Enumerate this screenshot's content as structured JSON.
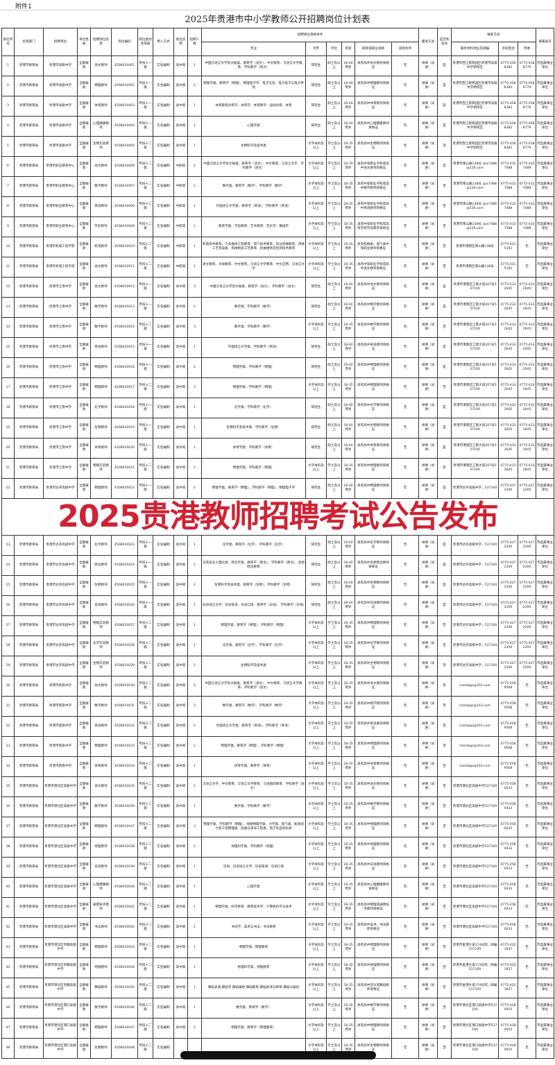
{
  "attachment": "附件1",
  "title": "2025年贵港市中小学教师公开招聘岗位计划表",
  "watermark": "2025贵港教师招聘考试公告发布",
  "colors": {
    "watermark": "#cf2233",
    "border": "#333333"
  },
  "headers": {
    "no": "岗位序号",
    "dept": "主管部门",
    "unit": "招聘单位",
    "nature": "单位性质",
    "post": "招聘岗位名称",
    "code": "岗位编码",
    "grade": "岗位类别及等级",
    "method": "用人方式",
    "type": "岗位说明",
    "count": "招聘人数",
    "qual_group": "招聘岗位资格条件",
    "major": "专业",
    "edu": "学历",
    "degree": "学位",
    "age": "年龄",
    "cert": "职称或职业资格",
    "other": "其他条件",
    "interview": "面试方式",
    "exempt": "是否免笔试",
    "contact_group": "联系方式",
    "addr": "报考材料地址及邮编",
    "tel": "咨询电话",
    "fax": "传真",
    "level": "隶属层次"
  },
  "rows": [
    [
      "1",
      "贵港市教育局",
      "贵港市高级中学",
      "全额拨款",
      "语文教师",
      "4508010001",
      "专技十一级",
      "实名编制",
      "高中岗",
      "1",
      "中国汉语言文学及文秘类、教育学（语文）、中文教育、汉语言文学教育、学科教学（语文）",
      "研究生",
      "硕士及以上",
      "18-40周岁",
      "具有高中语文教师资格证",
      "无",
      "讲课（试讲）",
      "是",
      "贵港市西江教育园区贵港市高级中学新校区",
      "0775-4588382",
      "0775-4588779",
      "市直属事业单位"
    ],
    [
      "2",
      "贵港市教育局",
      "贵港市高级中学",
      "全额拨款",
      "物理教师",
      "4508010002",
      "专技十一级",
      "实名编制",
      "高中岗",
      "2",
      "物理学类、教育学（物理）、物理电子学、电子信息、电力电子与电力传动",
      "研究生",
      "硕士及以上",
      "18-40周岁",
      "具有高中物理教师资格证",
      "无",
      "讲课（试讲）",
      "是",
      "贵港市西江教育园区贵港市高级中学新校区",
      "0775-4588382",
      "0775-4588779",
      "市直属事业单位"
    ],
    [
      "3",
      "贵港市教育局",
      "贵港市高级中学",
      "全额拨款",
      "体育教师",
      "4508010003",
      "专技十一级",
      "实名编制",
      "高中岗",
      "1",
      "体育教育训练学、体育学、体育教学、运动训练、体育",
      "研究生",
      "硕士及以上",
      "18-40周岁",
      "具有高中体育教师资格证",
      "无",
      "讲课（试讲）",
      "是",
      "贵港市西江教育园区贵港市高级中学新校区",
      "0775-4588382",
      "0775-4588779",
      "市直属事业单位"
    ],
    [
      "4",
      "贵港市教育局",
      "贵港市高级中学",
      "全额拨款",
      "心理健康教师",
      "4508010004",
      "专技十一级",
      "实名编制",
      "高中岗",
      "1",
      "心理学类",
      "研究生",
      "硕士及以上",
      "18-40周岁",
      "具有高中心理健康教师资格证",
      "无",
      "讲课（试讲）",
      "是",
      "贵港市西江教育园区贵港市高级中学新校区",
      "0775-4588382",
      "0775-4588779",
      "市直属事业单位"
    ],
    [
      "5",
      "贵港市教育局",
      "贵港市高级中学",
      "全额拨款",
      "生物实验教师",
      "4508010005",
      "专技十二级",
      "实名编制",
      "高中岗",
      "1",
      "生物科学及技术类",
      "大学本科及以上",
      "学士及以上",
      "18-35周岁",
      "具有高中生物教师资格证",
      "无",
      "讲课（试讲）",
      "否",
      "贵港市西江教育园区贵港市高级中学新校区",
      "0775-4588382",
      "0775-4588779",
      "市直属事业单位"
    ],
    [
      "6",
      "贵港市教育局",
      "贵港市职业教育中心",
      "全额拨款",
      "语文教师",
      "4508010006",
      "专技十二级",
      "实名编制",
      "中职岗",
      "2",
      "中国汉语言文学及文秘类、教育学（语文）、中文教育、汉语言文学、学科教学（语文）",
      "大学本科及以上",
      "学士及以上",
      "18-35周岁",
      "具有中等职业学校或高中语文教师资格证",
      "无",
      "讲课（试讲）",
      "否",
      "贵港市南山路138号 zjzx7488@126.com",
      "0775-4327488",
      "0775-4327488",
      "市直属事业单位"
    ],
    [
      "7",
      "贵港市教育局",
      "贵港市职业教育中心",
      "全额拨款",
      "数学教师",
      "4508010007",
      "专技十二级",
      "实名编制",
      "中职岗",
      "2",
      "数学类、教育学（数学）、学科教学（数学）",
      "大学本科及以上",
      "学士及以上",
      "18-35周岁",
      "具有中等职业学校或高中数学教师资格证",
      "无",
      "讲课（试讲）",
      "否",
      "贵港市南山路138号 zjzx7488@126.com",
      "0775-4327488",
      "0775-4327488",
      "市直属事业单位"
    ],
    [
      "8",
      "贵港市教育局",
      "贵港市职业教育中心",
      "全额拨款",
      "英语教师",
      "4508010008",
      "专技十二级",
      "实名编制",
      "中职岗",
      "1",
      "外国语言文学类、教育学（英语）、学科教学（英语）",
      "大学本科及以上",
      "学士及以上",
      "18-35周岁",
      "具有中等职业学校或高中英语教师资格证",
      "无",
      "讲课（试讲）",
      "否",
      "贵港市南山路138号 zjzx7488@126.com",
      "0775-4327488",
      "0775-4327488",
      "市直属事业单位"
    ],
    [
      "9",
      "贵港市教育局",
      "贵港市职业教育中心",
      "全额拨款",
      "学前教师",
      "4508010009",
      "专技十二级",
      "实名编制",
      "中职岗",
      "1",
      "教育学类、学前教育、艺术教育、音乐学、舞蹈学",
      "大学本科及以上",
      "学士及以上",
      "18-35周岁",
      "具有中等职业学校或高等学校学前教师资格证",
      "无",
      "讲课（试讲）",
      "否",
      "贵港市南山路138号 zjzx7488@126.com",
      "0775-4327488",
      "0775-4327488",
      "市直属事业单位"
    ],
    [
      "10",
      "贵港市教育局",
      "贵港市机电工程学校",
      "全额拨款",
      "机电教师",
      "4508010010",
      "专技十二级",
      "实名编制",
      "中职岗",
      "1",
      "机电技术教育、汽车维修工程教育、电气技术教育、农业机械教育、焊接工艺及设备、机械制造工艺教育、机械维修及检测技术教育",
      "大学本科及以上",
      "学士及以上",
      "18-35周岁",
      "具有机械类、电气类中等职业教师资格证",
      "无",
      "讲课（试讲）",
      "否",
      "贵港市港南区南山路138号",
      "0775-4215192",
      "无",
      "市直属事业单位"
    ],
    [
      "11",
      "贵港市教育局",
      "贵港市机电工程学校",
      "全额拨款",
      "语文教师",
      "4508010011",
      "专技十二级",
      "实名编制",
      "中职岗",
      "1",
      "语文教育、文秘教育、中文教育、汉语言文学教育、中文应用、汉语言文学",
      "大学本科及以上",
      "学士及以上",
      "18-35周岁",
      "具有中等职业学校或高中语文教师资格证",
      "无",
      "讲课（试讲）",
      "否",
      "贵港市港南区南山路138号",
      "0775-4215192",
      "无",
      "市直属事业单位"
    ],
    [
      "12",
      "贵港市教育局",
      "贵港市江南中学",
      "全额拨款",
      "语文教师",
      "4508010012",
      "专技十一级",
      "实名编制",
      "高中岗",
      "3",
      "中国汉语言文学及文秘类、教育学（语文）、学科教学（语文）",
      "研究生",
      "硕士及以上",
      "18-40周岁",
      "具有高中语文教师资格证",
      "无",
      "讲课（试讲）",
      "是",
      "贵港市港南区江南大道207号537100",
      "0775-4332645",
      "0775-4332645",
      "市直属事业单位"
    ],
    [
      "13",
      "贵港市教育局",
      "贵港市江南中学",
      "全额拨款",
      "数学教师",
      "4508010013",
      "专技十一级",
      "实名编制",
      "高中岗",
      "2",
      "数学类、学科教学（数学）",
      "研究生",
      "硕士及以上",
      "18-40周岁",
      "具有高中数学教师资格证",
      "无",
      "讲课（试讲）",
      "是",
      "贵港市港南区江南大道207号537100",
      "0775-4332645",
      "0775-4332645",
      "市直属事业单位"
    ],
    [
      "14",
      "贵港市教育局",
      "贵港市江南中学",
      "全额拨款",
      "数学教师",
      "4508010014",
      "专技十二级",
      "实名编制",
      "高中岗",
      "3",
      "数学类、学科教学（数学）",
      "大学本科及以上",
      "学士及以上",
      "18-35周岁",
      "具有高中数学教师资格证",
      "无",
      "讲课（试讲）",
      "否",
      "贵港市港南区江南大道207号537100",
      "0775-4332645",
      "0775-4332645",
      "市直属事业单位"
    ],
    [
      "15",
      "贵港市教育局",
      "贵港市江南中学",
      "全额拨款",
      "英语教师",
      "4508010015",
      "专技十一级",
      "实名编制",
      "高中岗",
      "1",
      "外国语言文学类、学科教学（英语）",
      "研究生",
      "硕士及以上",
      "18-40周岁",
      "具有高中英语教师资格证",
      "无",
      "讲课（试讲）",
      "是",
      "贵港市港南区江南大道207号537100",
      "0775-4332645",
      "0775-4332645",
      "市直属事业单位"
    ],
    [
      "16",
      "贵港市教育局",
      "贵港市江南中学",
      "全额拨款",
      "物理教师",
      "4508010016",
      "专技十一级",
      "实名编制",
      "高中岗",
      "2",
      "物理学类、学科教学（物理）",
      "研究生",
      "硕士及以上",
      "18-40周岁",
      "具有高中物理教师资格证",
      "无",
      "讲课（试讲）",
      "是",
      "贵港市港南区江南大道207号537100",
      "0775-4332645",
      "0775-4332645",
      "市直属事业单位"
    ],
    [
      "17",
      "贵港市教育局",
      "贵港市江南中学",
      "全额拨款",
      "物理教师",
      "4508010017",
      "专技十二级",
      "实名编制",
      "高中岗",
      "3",
      "物理学类、学科教学（物理）",
      "大学本科及以上",
      "学士及以上",
      "18-35周岁",
      "具有高中物理教师资格证",
      "无",
      "讲课（试讲）",
      "否",
      "贵港市港南区江南大道207号537100",
      "0775-4332645",
      "0775-4332645",
      "市直属事业单位"
    ],
    [
      "18",
      "贵港市教育局",
      "贵港市江南中学",
      "全额拨款",
      "化学教师",
      "4508010018",
      "专技十一级",
      "实名编制",
      "高中岗",
      "1",
      "化学类、学科教学（化学）",
      "研究生",
      "硕士及以上",
      "18-40周岁",
      "具有高中化学教师资格证",
      "无",
      "讲课（试讲）",
      "是",
      "贵港市港南区江南大道207号537100",
      "0775-4332645",
      "0775-4332645",
      "市直属事业单位"
    ],
    [
      "19",
      "贵港市教育局",
      "贵港市江南中学",
      "全额拨款",
      "生物教师",
      "4508010019",
      "专技十一级",
      "实名编制",
      "高中岗",
      "1",
      "生物科学及技术类、学科教学（生物）",
      "研究生",
      "硕士及以上",
      "18-40周岁",
      "具有高中生物教师资格证",
      "无",
      "讲课（试讲）",
      "是",
      "贵港市港南区江南大道207号537100",
      "0775-4332645",
      "0775-4332645",
      "市直属事业单位"
    ],
    [
      "20",
      "贵港市教育局",
      "贵港市江南中学",
      "全额拨款",
      "体育教师",
      "4508010020",
      "专技十一级",
      "实名编制",
      "高中岗",
      "1",
      "体育学类、学科教学（体育）",
      "研究生",
      "硕士及以上",
      "18-40周岁",
      "具有高中体育教师资格证",
      "无",
      "讲课（试讲）",
      "是",
      "贵港市港南区江南大道207号537100",
      "0775-4332645",
      "0775-4332645",
      "市直属事业单位"
    ],
    [
      "21",
      "贵港市教育局",
      "贵港市江南中学",
      "全额拨款",
      "物理实验教师",
      "4508010021",
      "专技十二级",
      "实名编制",
      "高中岗",
      "2",
      "物理学类、学科教学（物理）",
      "大学本科及以上",
      "学士及以上",
      "18-35周岁",
      "具有高中物理教师资格证",
      "无",
      "讲课（试讲）",
      "否",
      "贵港市港南区江南大道207号537100",
      "0775-4332645",
      "0775-4332645",
      "市直属事业单位"
    ],
    [
      "22",
      "贵港市教育局",
      "贵港市达开高级中学",
      "全额拨款",
      "物理教师",
      "4508010022",
      "专技十一级",
      "实名编制",
      "高中岗",
      "2",
      "物理学类、教育学（物理）、学科教学（物理）、物理电子学",
      "研究生",
      "硕士及以上",
      "18-40周岁",
      "具有高中物理教师资格证",
      "无",
      "讲课（试讲）",
      "是",
      "贵港市达开高级中学，537100",
      "0775-4272200",
      "0775-4272200",
      "市直属事业单位"
    ],
    [
      "23",
      "贵港市教育局",
      "贵港市达开高级中学",
      "全额拨款",
      "化学教师",
      "4508010023",
      "专技十一级",
      "实名编制",
      "高中岗",
      "1",
      "化学类、教育学（化学）、学科教学（化学）",
      "研究生",
      "硕士及以上",
      "18-40周岁",
      "具有高中化学教师资格证",
      "无",
      "讲课（试讲）",
      "是",
      "贵港市达开高级中学，537100",
      "0775-4272200",
      "0775-4272200",
      "市直属事业单位"
    ],
    [
      "24",
      "贵港市教育局",
      "贵港市达开高级中学",
      "全额拨款",
      "政治教师",
      "4508010024",
      "专技十一级",
      "实名编制",
      "高中岗",
      "2",
      "马克思主义理论类、政治学类、教育学（政治）、学科教学（政治）、思想政治教育",
      "研究生",
      "硕士及以上",
      "18-40周岁",
      "具有高中思想政治教师资格证",
      "无",
      "讲课（试讲）",
      "是",
      "贵港市达开高级中学，537100",
      "0775-4272200",
      "0775-4272200",
      "市直属事业单位"
    ],
    [
      "25",
      "贵港市教育局",
      "贵港市达开高级中学",
      "全额拨款",
      "生物教师",
      "4508010025",
      "专技十一级",
      "实名编制",
      "高中岗",
      "2",
      "生物科学及技术类、教育学（生物）、学科教学（生物）",
      "研究生",
      "硕士及以上",
      "18-40周岁",
      "具有高中生物教师资格证",
      "无",
      "讲课（试讲）",
      "是",
      "贵港市达开高级中学，537100",
      "0775-4272200",
      "0775-4272200",
      "市直属事业单位"
    ],
    [
      "26",
      "贵港市教育局",
      "贵港市达开高级中学",
      "全额拨款",
      "日语教师",
      "4508010026",
      "专技十一级",
      "实名编制",
      "高中岗",
      "1",
      "日语语言文学、日语笔译、日语口译、教育学（日语）、学科教学（日语）",
      "研究生",
      "硕士及以上",
      "18-40周岁",
      "具有高中日语教师资格证",
      "无",
      "讲课（试讲）",
      "是",
      "贵港市达开高级中学，537100",
      "0775-4272200",
      "0775-4272200",
      "市直属事业单位"
    ],
    [
      "27",
      "贵港市教育局",
      "贵港市达开高级中学",
      "全额拨款",
      "物理实验教师",
      "4508010027",
      "专技十二级",
      "实名编制",
      "高中岗",
      "1",
      "物理学类、教育学（物理）、学科教学（物理）",
      "大学本科及以上",
      "学士及以上",
      "18-35周岁",
      "具有高中物理教师资格证",
      "无",
      "讲课（试讲）",
      "否",
      "贵港市达开高级中学，537100",
      "0775-4272200",
      "0775-4272200",
      "市直属事业单位"
    ],
    [
      "28",
      "贵港市教育局",
      "贵港市达开高级中学",
      "全额拨款",
      "化学实验教师",
      "4508010028",
      "专技十二级",
      "实名编制",
      "高中岗",
      "1",
      "化学类、教育学（化学）、学科教学（化学）",
      "大学本科及以上",
      "学士及以上",
      "18-35周岁",
      "具有高中化学教师资格证",
      "无",
      "讲课（试讲）",
      "否",
      "贵港市达开高级中学，537100",
      "0775-4272200",
      "0775-4272200",
      "市直属事业单位"
    ],
    [
      "29",
      "贵港市教育局",
      "贵港市达开高级中学",
      "全额拨款",
      "生物实验教师",
      "4508010029",
      "专技十二级",
      "实名编制",
      "高中岗",
      "2",
      "生物科学及技术类",
      "大学本科及以上",
      "学士及以上",
      "18-35周岁",
      "具有高中生物教师资格证",
      "无",
      "讲课（试讲）",
      "否",
      "贵港市达开高级中学，537100",
      "0775-4272200",
      "0775-4272200",
      "市直属事业单位"
    ],
    [
      "30",
      "贵港市教育局",
      "贵港市民族中学",
      "全额拨款",
      "语文教师",
      "4508010030",
      "专技十二级",
      "实名编制",
      "高中岗",
      "4",
      "中国汉语言文学及文秘类、教育学（语文）、中文教育、汉语言文学教育、学科教学（语文）",
      "大学本科及以上",
      "学士及以上",
      "18-35周岁",
      "具有高中语文教师资格证",
      "无",
      "讲课（试讲）",
      "否",
      "mzzxbgs@163.com",
      "0775-4589568",
      "无",
      "市直属事业单位"
    ],
    [
      "31",
      "贵港市教育局",
      "贵港市民族中学",
      "全额拨款",
      "数学教师",
      "4508010031",
      "专技十二级",
      "实名编制",
      "高中岗",
      "3",
      "数学类、教育学（数学）、学科教学（数学）",
      "大学本科及以上",
      "学士及以上",
      "18-35周岁",
      "具有高中数学教师资格证",
      "无",
      "讲课（试讲）",
      "否",
      "mzzxbgs@163.com",
      "0775-4589568",
      "无",
      "市直属事业单位"
    ],
    [
      "32",
      "贵港市教育局",
      "贵港市民族中学",
      "全额拨款",
      "英语教师",
      "4508010032",
      "专技十二级",
      "实名编制",
      "高中岗",
      "2",
      "外国语言文学类、教育学（英语）、学科教学（英语）",
      "大学本科及以上",
      "学士及以上",
      "18-35周岁",
      "具有高中英语教师资格证",
      "无",
      "讲课（试讲）",
      "否",
      "mzzxbgs@163.com",
      "0775-4589568",
      "无",
      "市直属事业单位"
    ],
    [
      "33",
      "贵港市教育局",
      "贵港市民族中学",
      "全额拨款",
      "物理教师",
      "4508010033",
      "专技十二级",
      "实名编制",
      "高中岗",
      "2",
      "物理学类、教育学（物理）、学科教学（物理）",
      "大学本科及以上",
      "学士及以上",
      "18-35周岁",
      "具有高中物理教师资格证",
      "无",
      "讲课（试讲）",
      "否",
      "mzzxbgs@163.com",
      "0775-4589568",
      "无",
      "市直属事业单位"
    ],
    [
      "34",
      "贵港市教育局",
      "贵港市民族中学",
      "全额拨款",
      "体育教师",
      "4508010034",
      "专技十二级",
      "实名编制",
      "高中岗",
      "1",
      "体育学类、教育学（体育）",
      "大学本科及以上",
      "学士及以上",
      "18-35周岁",
      "具有高中体育教师资格证",
      "无",
      "讲课（试讲）",
      "否",
      "mzzxbgs@163.com",
      "0775-4589568",
      "无",
      "市直属事业单位"
    ],
    [
      "35",
      "贵港市教育局",
      "贵港市港北区高级中学",
      "全额拨款",
      "语文教师",
      "4508010035",
      "专技十二级",
      "实名编制",
      "高中岗",
      "1",
      "汉语言文学、中文教育、汉语言文学教育、汉语国际教育、学科教学（语文）",
      "大学本科及以上",
      "学士及以上",
      "18-35周岁",
      "具有高中语文教师资格证",
      "无",
      "讲课（试讲）",
      "否",
      "贵港市港北区高级中学537100",
      "0775-4580433",
      "无",
      "市直属事业单位"
    ],
    [
      "36",
      "贵港市教育局",
      "贵港市港北区高级中学",
      "全额拨款",
      "数学教师",
      "4508010036",
      "专技十二级",
      "实名编制",
      "高中岗",
      "1",
      "数学类、学科教学（数学）",
      "大学本科及以上",
      "学士及以上",
      "18-35周岁",
      "具有高中数学教师资格证",
      "无",
      "讲课（试讲）",
      "否",
      "贵港市港北区高级中学537100",
      "0775-4580433",
      "无",
      "市直属事业单位"
    ],
    [
      "37",
      "贵港市教育局",
      "贵港市港北区高级中学",
      "全额拨款",
      "物理教师",
      "4508010037",
      "专技十二级",
      "实名编制",
      "高中岗",
      "3",
      "物理学类、学科教学（物理）、地球物理学类、力学类、电气类、能源动力及工程物理类、船舶与海洋工程类、电子及自动化类",
      "大学本科及以上",
      "学士及以上",
      "18-35周岁",
      "具有高中物理教师资格证",
      "无",
      "讲课（试讲）",
      "否",
      "贵港市港北区高级中学537100",
      "0775-4580433",
      "无",
      "市直属事业单位"
    ],
    [
      "38",
      "贵港市教育局",
      "贵港市港北区高级中学",
      "全额拨款",
      "地理教师",
      "4508010038",
      "专技十二级",
      "实名编制",
      "高中岗",
      "2",
      "地理科学类、学科教学（地理）",
      "大学本科及以上",
      "学士及以上",
      "18-35周岁",
      "具有高中地理教师资格证",
      "无",
      "讲课（试讲）",
      "否",
      "贵港市港北区高级中学537100",
      "0775-4580433",
      "无",
      "市直属事业单位"
    ],
    [
      "39",
      "贵港市教育局",
      "贵港市港北区高级中学",
      "全额拨款",
      "日语教师",
      "4508010039",
      "专技十二级",
      "实名编制",
      "高中岗",
      "1",
      "日语、日语语言文学、日语笔译、日语口译",
      "大学本科及以上",
      "学士及以上",
      "18-35周岁",
      "具有高中日语教师资格证",
      "无",
      "讲课（试讲）",
      "否",
      "贵港市港北区高级中学537100",
      "0775-4580433",
      "无",
      "市直属事业单位"
    ],
    [
      "40",
      "贵港市教育局",
      "贵港市港北区高级中学",
      "全额拨款",
      "心理健康教师",
      "4508010040",
      "专技十二级",
      "实名编制",
      "高中岗",
      "1",
      "心理学类",
      "大学本科及以上",
      "学士及以上",
      "18-35周岁",
      "具有高中心理健康教师资格证",
      "无",
      "讲课（试讲）",
      "否",
      "贵港市港北区高级中学537100",
      "0775-4580433",
      "无",
      "市直属事业单位"
    ],
    [
      "41",
      "贵港市教育局",
      "贵港市港北区高级中学",
      "全额拨款",
      "通用技术教师",
      "4508010041",
      "专技十二级",
      "实名编制",
      "高中岗",
      "1",
      "物理学类、科学教育、教育技术学、计算机科学与技术",
      "大学本科及以上",
      "学士及以上",
      "18-35周岁",
      "具有高中物理或通用技术教师资格证",
      "无",
      "讲课（试讲）",
      "否",
      "贵港市港北区高级中学537100",
      "0775-4580433",
      "无",
      "市直属事业单位"
    ],
    [
      "42",
      "贵港市教育局",
      "贵港市港北区高级中学",
      "全额拨款",
      "书法教师",
      "4508010042",
      "专技十二级",
      "实名编制",
      "高中岗",
      "1",
      "书法学、美术与书法、书法教育",
      "大学本科及以上",
      "学士及以上",
      "18-35周岁",
      "具有高中美术、书法教师资格证",
      "无",
      "讲课（试讲）",
      "否",
      "贵港市港北区高级中学537100",
      "0775-4580433",
      "无",
      "市直属事业单位"
    ],
    [
      "43",
      "贵港市教育局",
      "贵港市港北区贵糖高级中学",
      "全额拨款",
      "物理教师",
      "4508010043",
      "专技十二级",
      "实名编制",
      "高中岗",
      "1",
      "物理学类、物理教育",
      "大学本科及以上",
      "学士及以上",
      "18-35周岁",
      "具有高中物理教师资格证",
      "无",
      "讲课（试讲）",
      "否",
      "贵港市金港大道174号院，邮编537100",
      "0775-4201837",
      "无",
      "市直属事业单位"
    ],
    [
      "44",
      "贵港市教育局",
      "贵港市港北区贵糖高级中学",
      "全额拨款",
      "地理教师",
      "4508010044",
      "专技十二级",
      "实名编制",
      "高中岗",
      "1",
      "地理科学类、地理教育",
      "大学本科及以上",
      "学士及以上",
      "18-35周岁",
      "具有高中地理教师资格证",
      "无",
      "讲课（试讲）",
      "否",
      "贵港市金港大道174号院，邮编537100",
      "0775-4201837",
      "无",
      "市直属事业单位"
    ],
    [
      "45",
      "贵港市教育局",
      "贵港市港北区贵糖高级中学",
      "全额拨款",
      "舞蹈教师",
      "4508010045",
      "专技十二级",
      "实名编制",
      "高中岗",
      "1",
      "舞蹈表演,舞蹈学,舞蹈编导,舞蹈教育,舞蹈表演与教育,舞蹈与编创",
      "大学本科及以上",
      "学士及以上",
      "18-35周岁",
      "具有高中音乐或舞蹈教师资格证",
      "无",
      "讲课（试讲）",
      "否",
      "贵港市金港大道174号院，邮编537100",
      "0775-4201837",
      "无",
      "市直属事业单位"
    ],
    [
      "46",
      "贵港市教育局",
      "贵港市港北区港口高级中学",
      "全额拨款",
      "数学教师",
      "4508010046",
      "专技十二级",
      "实名编制",
      "高中岗",
      "1",
      "数学类、教育学（数学）",
      "大学本科及以上",
      "学士及以上",
      "18-35周岁",
      "具有高中数学教师资格证",
      "无",
      "讲课（试讲）",
      "否",
      "贵港市港北区港口高级中学537100",
      "0775-4280915",
      "无",
      "市直属事业单位"
    ],
    [
      "47",
      "贵港市教育局",
      "贵港市港北区港口高级中学",
      "全额拨款",
      "物理教师",
      "4508010047",
      "专技十二级",
      "实名编制",
      "高中岗",
      "2",
      "物理学类、教育学（物理教育）",
      "大学本科及以上",
      "学士及以上",
      "18-35周岁",
      "具有高中物理教师资格证",
      "无",
      "讲课（试讲）",
      "否",
      "贵港市港北区港口高级中学537100",
      "0775-4280915",
      "无",
      "市直属事业单位"
    ],
    [
      "48",
      "贵港市教育局",
      "贵港市港北区港口高级中学",
      "全额拨款",
      "生物教师",
      "4508010048",
      "专技十二级",
      "实名编制",
      "",
      "",
      "",
      "大学本科及以上",
      "学士及以上",
      "18-35周岁",
      "具有高中生物教师资格证",
      "无",
      "讲课（试讲）",
      "否",
      "贵港市港北区港口高级中学537100",
      "0775-4280915",
      "无",
      "市直属事业单位"
    ]
  ]
}
